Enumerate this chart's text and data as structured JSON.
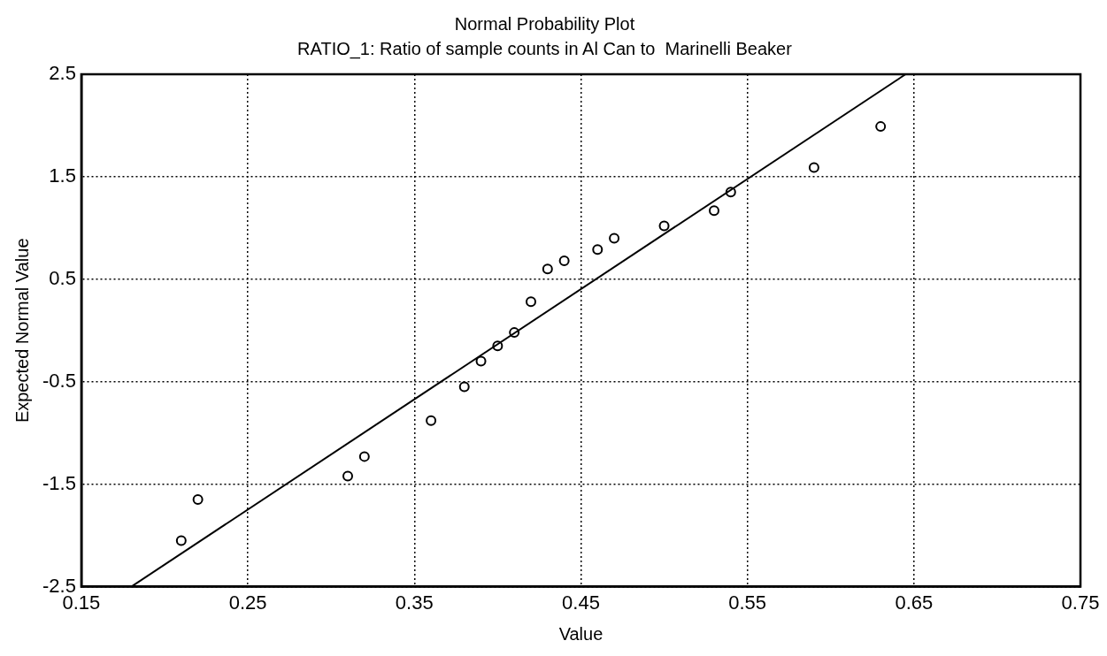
{
  "chart_data": {
    "type": "scatter",
    "title": "Normal Probability Plot",
    "subtitle": "RATIO_1: Ratio of sample counts in Al Can to  Marinelli Beaker",
    "xlabel": "Value",
    "ylabel": "Expected Normal Value",
    "xlim": [
      0.15,
      0.75
    ],
    "xticks": [
      0.15,
      0.25,
      0.35,
      0.45,
      0.55,
      0.65,
      0.75
    ],
    "ylim": [
      -2.5,
      2.5
    ],
    "yticks": [
      -2.5,
      -1.5,
      -0.5,
      0.5,
      1.5,
      2.5
    ],
    "grid": true,
    "legend": false,
    "marker": "circle",
    "series": [
      {
        "type": "scatter",
        "color": "#000000",
        "x": [
          0.21,
          0.22,
          0.31,
          0.32,
          0.36,
          0.38,
          0.39,
          0.4,
          0.41,
          0.42,
          0.43,
          0.44,
          0.46,
          0.47,
          0.5,
          0.53,
          0.54,
          0.59,
          0.63
        ],
        "values": [
          -2.05,
          -1.65,
          -1.42,
          -1.23,
          -0.88,
          -0.55,
          -0.3,
          -0.15,
          -0.02,
          0.28,
          0.6,
          0.68,
          0.79,
          0.9,
          1.02,
          1.17,
          1.35,
          1.59,
          1.99
        ]
      },
      {
        "type": "line",
        "color": "#000000",
        "marker": "none",
        "x": [
          0.18,
          0.645
        ],
        "values": [
          -2.5,
          2.5
        ]
      }
    ]
  }
}
